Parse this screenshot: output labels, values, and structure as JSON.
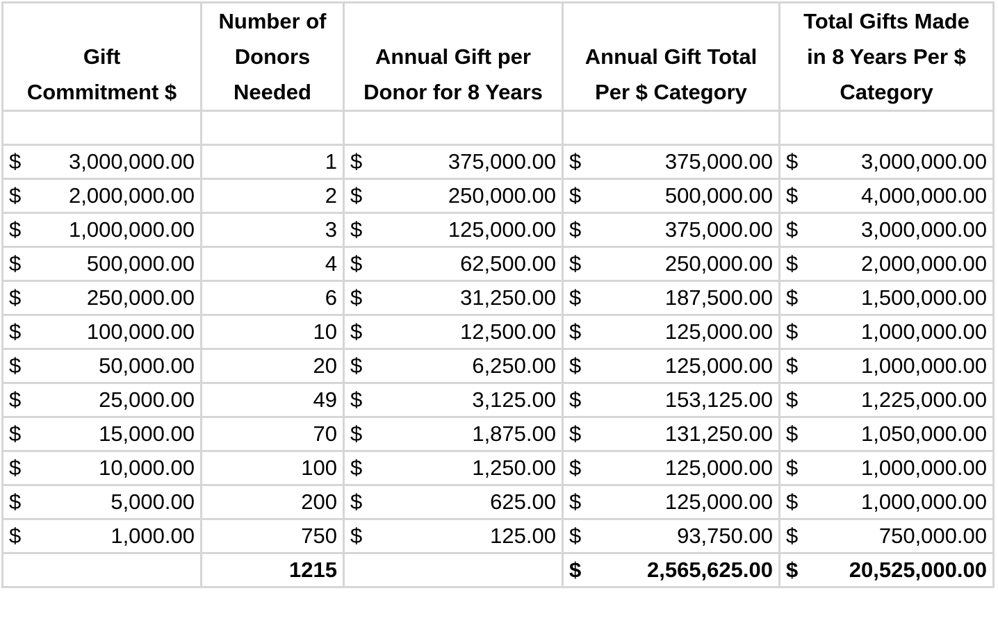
{
  "table": {
    "header": [
      [
        "Gift",
        "Commitment $"
      ],
      [
        "Number of",
        "Donors",
        "Needed"
      ],
      [
        "Annual Gift per",
        "Donor for 8 Years"
      ],
      [
        "Annual Gift Total",
        "Per $ Category"
      ],
      [
        "Total Gifts Made",
        "in 8 Years Per $",
        "Category"
      ]
    ],
    "rows": [
      [
        {
          "symbol": "$",
          "amount": "3,000,000.00"
        },
        "1",
        {
          "symbol": "$",
          "amount": "375,000.00"
        },
        {
          "symbol": "$",
          "amount": "375,000.00"
        },
        {
          "symbol": "$",
          "amount": "3,000,000.00"
        }
      ],
      [
        {
          "symbol": "$",
          "amount": "2,000,000.00"
        },
        "2",
        {
          "symbol": "$",
          "amount": "250,000.00"
        },
        {
          "symbol": "$",
          "amount": "500,000.00"
        },
        {
          "symbol": "$",
          "amount": "4,000,000.00"
        }
      ],
      [
        {
          "symbol": "$",
          "amount": "1,000,000.00"
        },
        "3",
        {
          "symbol": "$",
          "amount": "125,000.00"
        },
        {
          "symbol": "$",
          "amount": "375,000.00"
        },
        {
          "symbol": "$",
          "amount": "3,000,000.00"
        }
      ],
      [
        {
          "symbol": "$",
          "amount": "500,000.00"
        },
        "4",
        {
          "symbol": "$",
          "amount": "62,500.00"
        },
        {
          "symbol": "$",
          "amount": "250,000.00"
        },
        {
          "symbol": "$",
          "amount": "2,000,000.00"
        }
      ],
      [
        {
          "symbol": "$",
          "amount": "250,000.00"
        },
        "6",
        {
          "symbol": "$",
          "amount": "31,250.00"
        },
        {
          "symbol": "$",
          "amount": "187,500.00"
        },
        {
          "symbol": "$",
          "amount": "1,500,000.00"
        }
      ],
      [
        {
          "symbol": "$",
          "amount": "100,000.00"
        },
        "10",
        {
          "symbol": "$",
          "amount": "12,500.00"
        },
        {
          "symbol": "$",
          "amount": "125,000.00"
        },
        {
          "symbol": "$",
          "amount": "1,000,000.00"
        }
      ],
      [
        {
          "symbol": "$",
          "amount": "50,000.00"
        },
        "20",
        {
          "symbol": "$",
          "amount": "6,250.00"
        },
        {
          "symbol": "$",
          "amount": "125,000.00"
        },
        {
          "symbol": "$",
          "amount": "1,000,000.00"
        }
      ],
      [
        {
          "symbol": "$",
          "amount": "25,000.00"
        },
        "49",
        {
          "symbol": "$",
          "amount": "3,125.00"
        },
        {
          "symbol": "$",
          "amount": "153,125.00"
        },
        {
          "symbol": "$",
          "amount": "1,225,000.00"
        }
      ],
      [
        {
          "symbol": "$",
          "amount": "15,000.00"
        },
        "70",
        {
          "symbol": "$",
          "amount": "1,875.00"
        },
        {
          "symbol": "$",
          "amount": "131,250.00"
        },
        {
          "symbol": "$",
          "amount": "1,050,000.00"
        }
      ],
      [
        {
          "symbol": "$",
          "amount": "10,000.00"
        },
        "100",
        {
          "symbol": "$",
          "amount": "1,250.00"
        },
        {
          "symbol": "$",
          "amount": "125,000.00"
        },
        {
          "symbol": "$",
          "amount": "1,000,000.00"
        }
      ],
      [
        {
          "symbol": "$",
          "amount": "5,000.00"
        },
        "200",
        {
          "symbol": "$",
          "amount": "625.00"
        },
        {
          "symbol": "$",
          "amount": "125,000.00"
        },
        {
          "symbol": "$",
          "amount": "1,000,000.00"
        }
      ],
      [
        {
          "symbol": "$",
          "amount": "1,000.00"
        },
        "750",
        {
          "symbol": "$",
          "amount": "125.00"
        },
        {
          "symbol": "$",
          "amount": "93,750.00"
        },
        {
          "symbol": "$",
          "amount": "750,000.00"
        }
      ]
    ],
    "totals": [
      null,
      "1215",
      null,
      {
        "symbol": "$",
        "amount": "2,565,625.00"
      },
      {
        "symbol": "$",
        "amount": "20,525,000.00"
      }
    ]
  }
}
